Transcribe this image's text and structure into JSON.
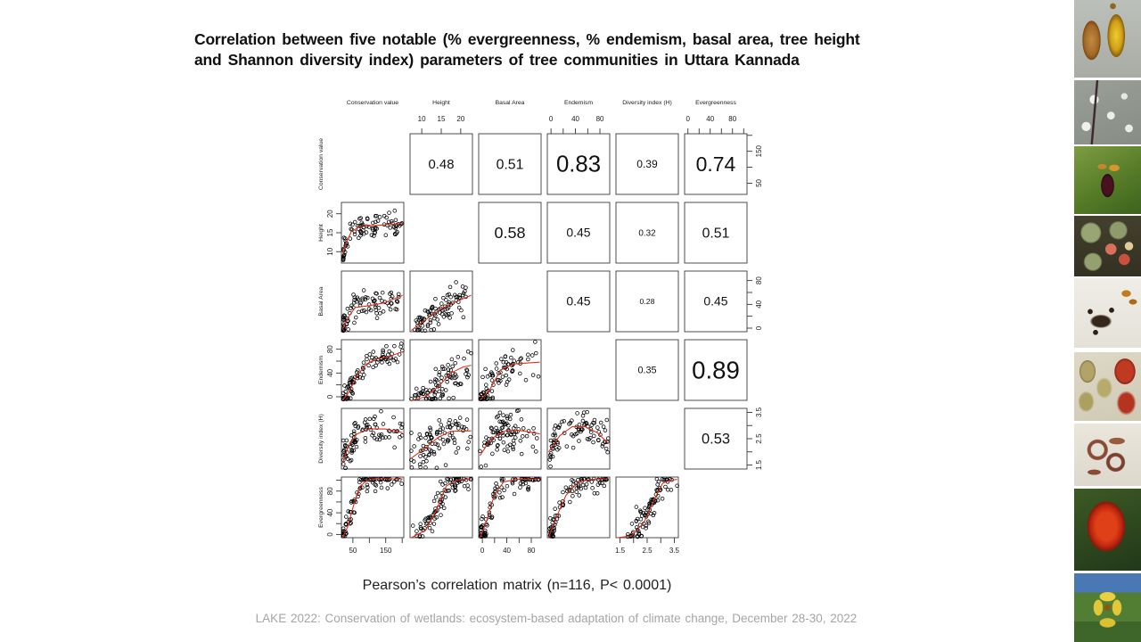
{
  "slide": {
    "title_line1": "Correlation between five notable (% evergreenness, % endemism, basal area, tree height",
    "title_line2": "and Shannon diversity index) parameters of tree communities in Uttara Kannada",
    "caption": "Pearson’s correlation matrix (n=116, P< 0.0001)",
    "footer": "LAKE 2022: Conservation of wetlands: ecosystem-based adaptation of climate change, December 28-30, 2022"
  },
  "chart_data": {
    "type": "scatter",
    "subtype": "pairs-correlation-matrix",
    "n_samples": 116,
    "significance": "P< 0.0001",
    "accent_color": "#e0301e",
    "point_style": "open black circles",
    "upper_triangle": "Pearson correlation coefficients (text size scales with |r|)",
    "lower_triangle": "scatterplots with red loess smooth curves",
    "diagonal": "blank",
    "variables": [
      {
        "name": "Conservation value",
        "range": [
          15,
          205
        ],
        "ticks": [
          50,
          100,
          150,
          200
        ],
        "labeled": [
          50,
          150
        ]
      },
      {
        "name": "Height",
        "range": [
          7,
          23
        ],
        "ticks": [
          10,
          15,
          20
        ],
        "labeled": [
          10,
          15,
          20
        ]
      },
      {
        "name": "Basal Area",
        "range": [
          -6,
          96
        ],
        "ticks": [
          0,
          20,
          40,
          60,
          80
        ],
        "labeled": [
          0,
          40,
          80
        ]
      },
      {
        "name": "Endemism",
        "range": [
          -6,
          96
        ],
        "ticks": [
          0,
          20,
          40,
          60,
          80
        ],
        "labeled": [
          0,
          40,
          80
        ]
      },
      {
        "name": "Diversity index (H)",
        "range": [
          1.35,
          3.65
        ],
        "ticks": [
          1.5,
          2.0,
          2.5,
          3.0,
          3.5
        ],
        "labeled": [
          1.5,
          2.5,
          3.5
        ]
      },
      {
        "name": "Evergreenness",
        "range": [
          -6,
          106
        ],
        "ticks": [
          0,
          20,
          40,
          60,
          80,
          100
        ],
        "labeled": [
          0,
          40,
          80
        ]
      }
    ],
    "correlations": {
      "0-1": 0.48,
      "0-2": 0.51,
      "0-3": 0.83,
      "0-4": 0.39,
      "0-5": 0.74,
      "1-2": 0.58,
      "1-3": 0.45,
      "1-4": 0.32,
      "1-5": 0.51,
      "2-3": 0.45,
      "2-4": 0.28,
      "2-5": 0.45,
      "3-4": 0.35,
      "3-5": 0.89,
      "4-5": 0.53
    },
    "correlation_pairs": [
      {
        "x": "Height",
        "y": "Conservation value",
        "r": 0.48
      },
      {
        "x": "Basal Area",
        "y": "Conservation value",
        "r": 0.51
      },
      {
        "x": "Endemism",
        "y": "Conservation value",
        "r": 0.83
      },
      {
        "x": "Diversity index (H)",
        "y": "Conservation value",
        "r": 0.39
      },
      {
        "x": "Evergreenness",
        "y": "Conservation value",
        "r": 0.74
      },
      {
        "x": "Basal Area",
        "y": "Height",
        "r": 0.58
      },
      {
        "x": "Endemism",
        "y": "Height",
        "r": 0.45
      },
      {
        "x": "Diversity index (H)",
        "y": "Height",
        "r": 0.32
      },
      {
        "x": "Evergreenness",
        "y": "Height",
        "r": 0.51
      },
      {
        "x": "Endemism",
        "y": "Basal Area",
        "r": 0.45
      },
      {
        "x": "Diversity index (H)",
        "y": "Basal Area",
        "r": 0.28
      },
      {
        "x": "Evergreenness",
        "y": "Basal Area",
        "r": 0.45
      },
      {
        "x": "Diversity index (H)",
        "y": "Endemism",
        "r": 0.35
      },
      {
        "x": "Evergreenness",
        "y": "Endemism",
        "r": 0.89
      },
      {
        "x": "Evergreenness",
        "y": "Diversity index (H)",
        "r": 0.53
      }
    ],
    "points_per_panel": 88,
    "panels": {
      "1-0": {
        "dist": "left",
        "spread": 0.09,
        "curve": [
          [
            0.02,
            0.14
          ],
          [
            0.08,
            0.34
          ],
          [
            0.16,
            0.52
          ],
          [
            0.3,
            0.6
          ],
          [
            0.55,
            0.62
          ],
          [
            0.98,
            0.65
          ]
        ]
      },
      "2-0": {
        "dist": "left",
        "spread": 0.13,
        "curve": [
          [
            0.02,
            0.04
          ],
          [
            0.1,
            0.22
          ],
          [
            0.22,
            0.4
          ],
          [
            0.45,
            0.43
          ],
          [
            0.7,
            0.48
          ],
          [
            0.98,
            0.6
          ]
        ]
      },
      "2-1": {
        "dist": "mid",
        "spread": 0.13,
        "curve": [
          [
            0.02,
            0.02
          ],
          [
            0.25,
            0.2
          ],
          [
            0.5,
            0.38
          ],
          [
            0.75,
            0.5
          ],
          [
            0.98,
            0.6
          ]
        ]
      },
      "3-0": {
        "dist": "left",
        "spread": 0.1,
        "curve": [
          [
            0.02,
            0.0
          ],
          [
            0.12,
            0.14
          ],
          [
            0.25,
            0.4
          ],
          [
            0.4,
            0.6
          ],
          [
            0.55,
            0.68
          ],
          [
            0.75,
            0.72
          ],
          [
            0.98,
            0.8
          ]
        ]
      },
      "3-1": {
        "dist": "mid",
        "spread": 0.17,
        "curve": [
          [
            0.02,
            0.0
          ],
          [
            0.25,
            0.06
          ],
          [
            0.45,
            0.22
          ],
          [
            0.65,
            0.45
          ],
          [
            0.85,
            0.55
          ],
          [
            0.98,
            0.58
          ]
        ]
      },
      "3-2": {
        "dist": "left",
        "spread": 0.17,
        "curve": [
          [
            0.02,
            0.0
          ],
          [
            0.18,
            0.18
          ],
          [
            0.35,
            0.5
          ],
          [
            0.55,
            0.6
          ],
          [
            0.98,
            0.63
          ]
        ]
      },
      "4-0": {
        "dist": "left",
        "spread": 0.16,
        "curve": [
          [
            0.02,
            0.1
          ],
          [
            0.12,
            0.4
          ],
          [
            0.25,
            0.58
          ],
          [
            0.45,
            0.66
          ],
          [
            0.7,
            0.66
          ],
          [
            0.98,
            0.6
          ]
        ]
      },
      "4-1": {
        "dist": "mid",
        "spread": 0.18,
        "curve": [
          [
            0.02,
            0.18
          ],
          [
            0.25,
            0.35
          ],
          [
            0.45,
            0.52
          ],
          [
            0.65,
            0.62
          ],
          [
            0.98,
            0.63
          ]
        ]
      },
      "4-2": {
        "dist": "mid",
        "spread": 0.17,
        "curve": [
          [
            0.02,
            0.22
          ],
          [
            0.2,
            0.5
          ],
          [
            0.45,
            0.64
          ],
          [
            0.7,
            0.63
          ],
          [
            0.98,
            0.58
          ]
        ]
      },
      "4-3": {
        "dist": "mix0",
        "spread": 0.16,
        "curve": [
          [
            0.02,
            0.28
          ],
          [
            0.2,
            0.55
          ],
          [
            0.4,
            0.7
          ],
          [
            0.6,
            0.7
          ],
          [
            0.8,
            0.6
          ],
          [
            0.98,
            0.42
          ]
        ]
      },
      "5-0": {
        "dist": "left",
        "spread": 0.1,
        "curve": [
          [
            0.02,
            0.0
          ],
          [
            0.1,
            0.18
          ],
          [
            0.2,
            0.55
          ],
          [
            0.3,
            0.85
          ],
          [
            0.42,
            0.95
          ],
          [
            0.6,
            0.97
          ],
          [
            0.98,
            0.97
          ]
        ]
      },
      "5-1": {
        "dist": "mid",
        "spread": 0.13,
        "curve": [
          [
            0.02,
            0.0
          ],
          [
            0.25,
            0.12
          ],
          [
            0.42,
            0.45
          ],
          [
            0.58,
            0.85
          ],
          [
            0.75,
            0.95
          ],
          [
            0.98,
            0.97
          ]
        ]
      },
      "5-2": {
        "dist": "left",
        "spread": 0.13,
        "curve": [
          [
            0.02,
            0.0
          ],
          [
            0.12,
            0.25
          ],
          [
            0.25,
            0.7
          ],
          [
            0.4,
            0.92
          ],
          [
            0.6,
            0.96
          ],
          [
            0.98,
            0.97
          ]
        ]
      },
      "5-3": {
        "dist": "mix0",
        "spread": 0.11,
        "curve": [
          [
            0.02,
            0.0
          ],
          [
            0.15,
            0.35
          ],
          [
            0.3,
            0.7
          ],
          [
            0.5,
            0.92
          ],
          [
            0.7,
            0.96
          ],
          [
            0.98,
            0.97
          ]
        ]
      },
      "5-4": {
        "dist": "midright",
        "spread": 0.13,
        "curve": [
          [
            0.02,
            0.0
          ],
          [
            0.25,
            0.03
          ],
          [
            0.45,
            0.25
          ],
          [
            0.6,
            0.6
          ],
          [
            0.75,
            0.9
          ],
          [
            0.88,
            0.95
          ],
          [
            0.98,
            0.96
          ]
        ]
      }
    }
  },
  "photo_strip": {
    "items": [
      {
        "name": "golden-seed-pods-photo",
        "desc": "Split golden-brown seed pods on grey background"
      },
      {
        "name": "white-flowers-photo",
        "desc": "Small white flowers on dark twig"
      },
      {
        "name": "maroon-orchid-photo",
        "desc": "Dark maroon flower with orange petals on green foliage"
      },
      {
        "name": "green-fruits-photo",
        "desc": "Round green fruits split open showing pink-red arils"
      },
      {
        "name": "dark-seeds-photo",
        "desc": "Cluster of small dark seeds with orange fragments on white"
      },
      {
        "name": "olive-seeds-red-fruits-photo",
        "desc": "Olive-tan seeds beside bright red fruits"
      },
      {
        "name": "curled-pods-photo",
        "desc": "Curled reddish-brown seed pods on pale background"
      },
      {
        "name": "red-flower-cluster-photo",
        "desc": "Dense red-orange flower cluster against dark green leaves"
      },
      {
        "name": "yellow-flowers-photo",
        "desc": "Yellow flowers with green leaves against blue sky"
      }
    ]
  }
}
